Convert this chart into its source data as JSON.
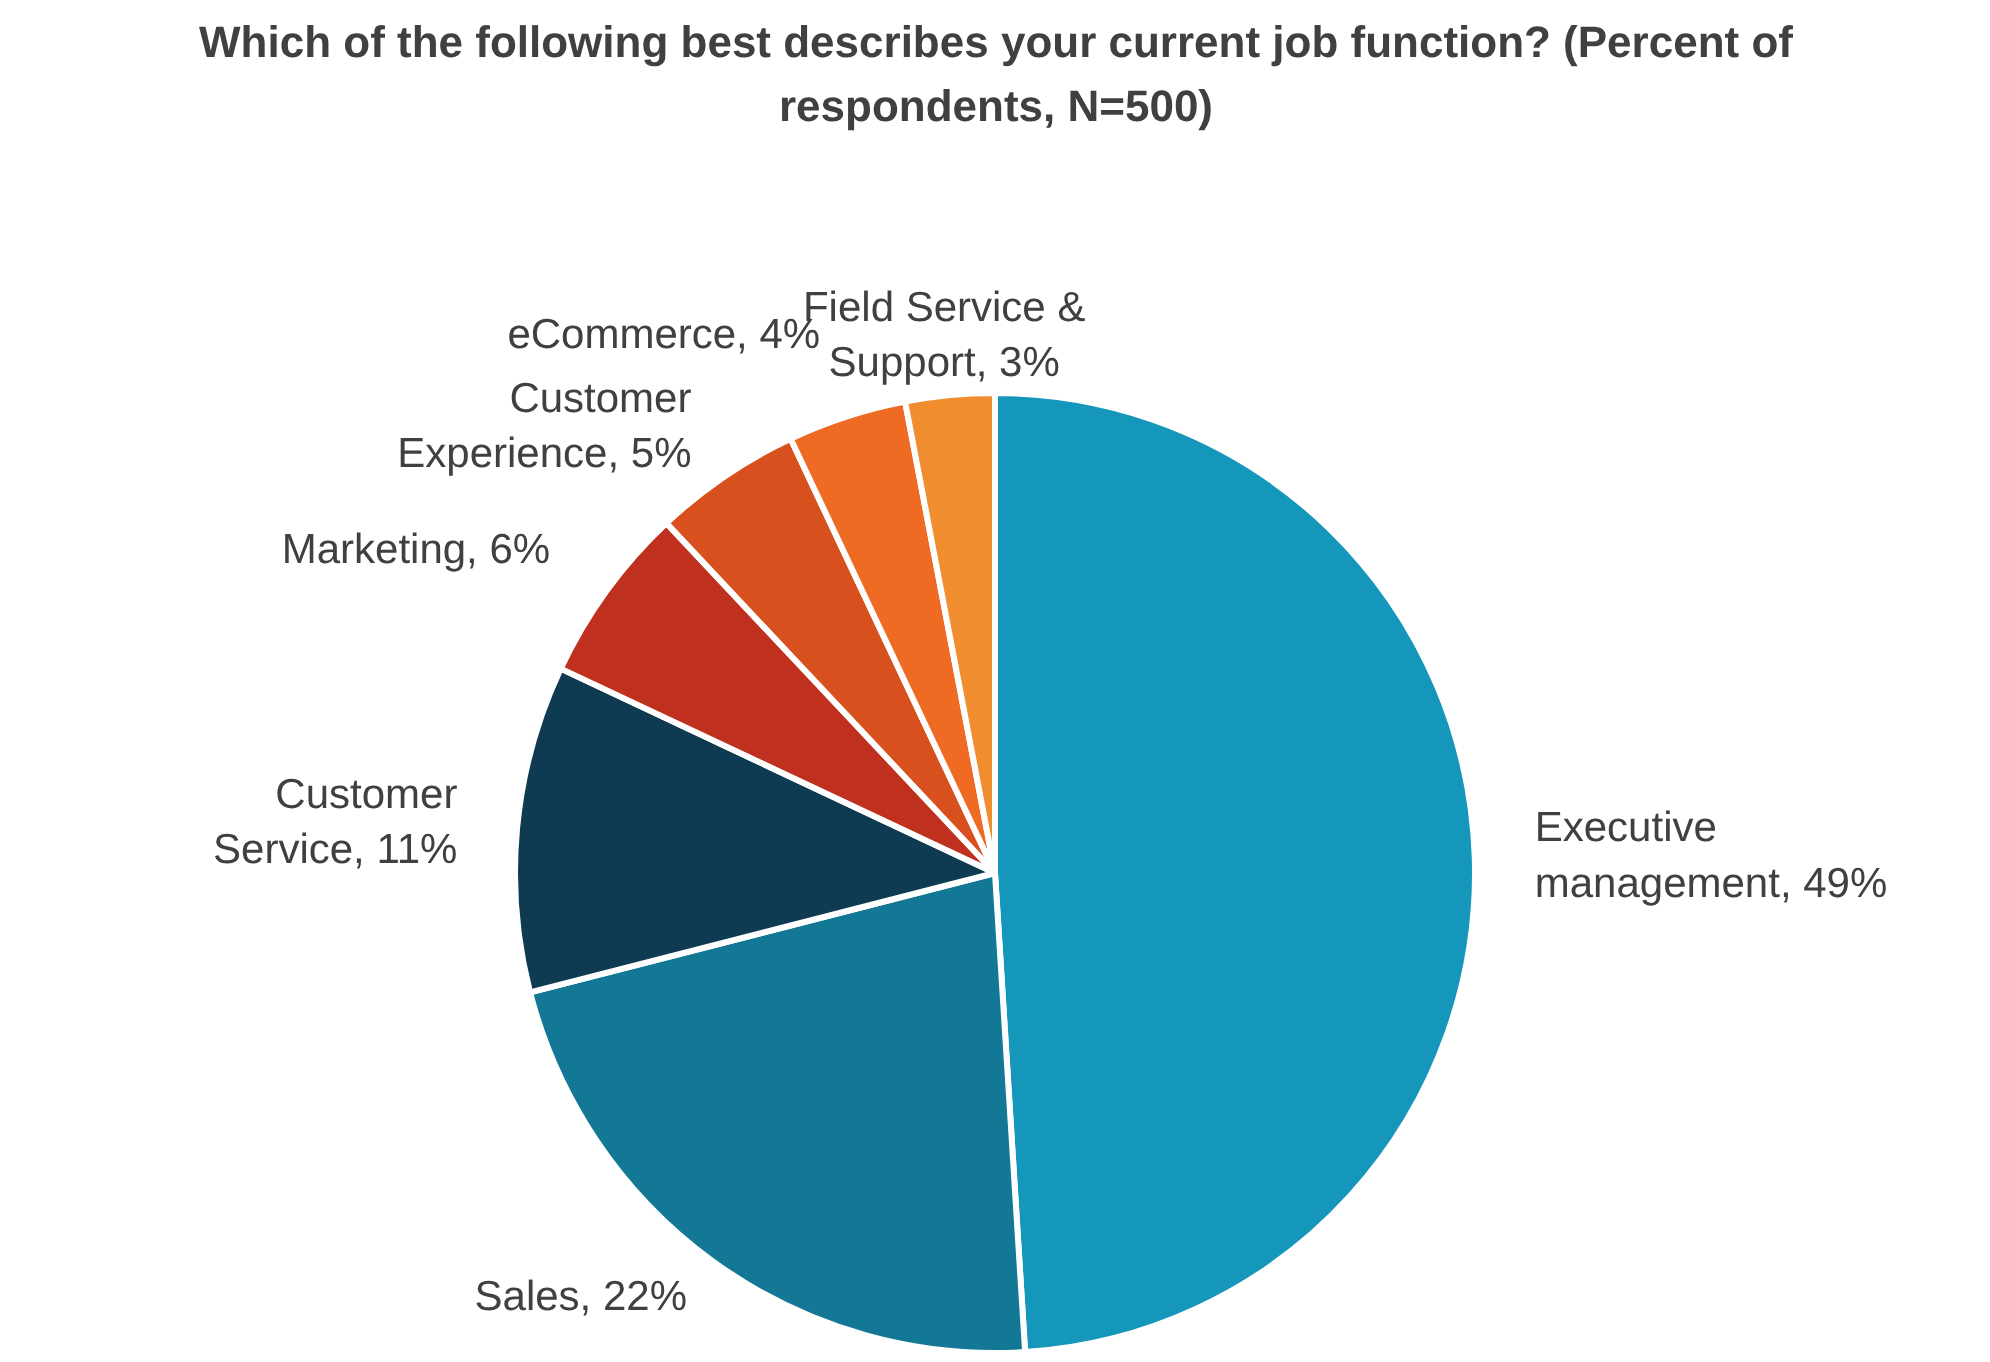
{
  "chart_data": {
    "type": "pie",
    "title": "Which of the following best describes your current job function? (Percent of respondents, N=500)",
    "categories": [
      "Executive management",
      "Sales",
      "Customer Service",
      "Marketing",
      "Customer Experience",
      "eCommerce",
      "Field Service & Support"
    ],
    "values": [
      49,
      22,
      11,
      6,
      5,
      4,
      3
    ],
    "value_labels": [
      "49%",
      "22%",
      "11%",
      "6%",
      "5%",
      "4%",
      "3%"
    ],
    "colors": [
      "#1596bb",
      "#137896",
      "#0f3b52",
      "#c0301f",
      "#d9501f",
      "#ef6a22",
      "#ef8d2f"
    ]
  }
}
